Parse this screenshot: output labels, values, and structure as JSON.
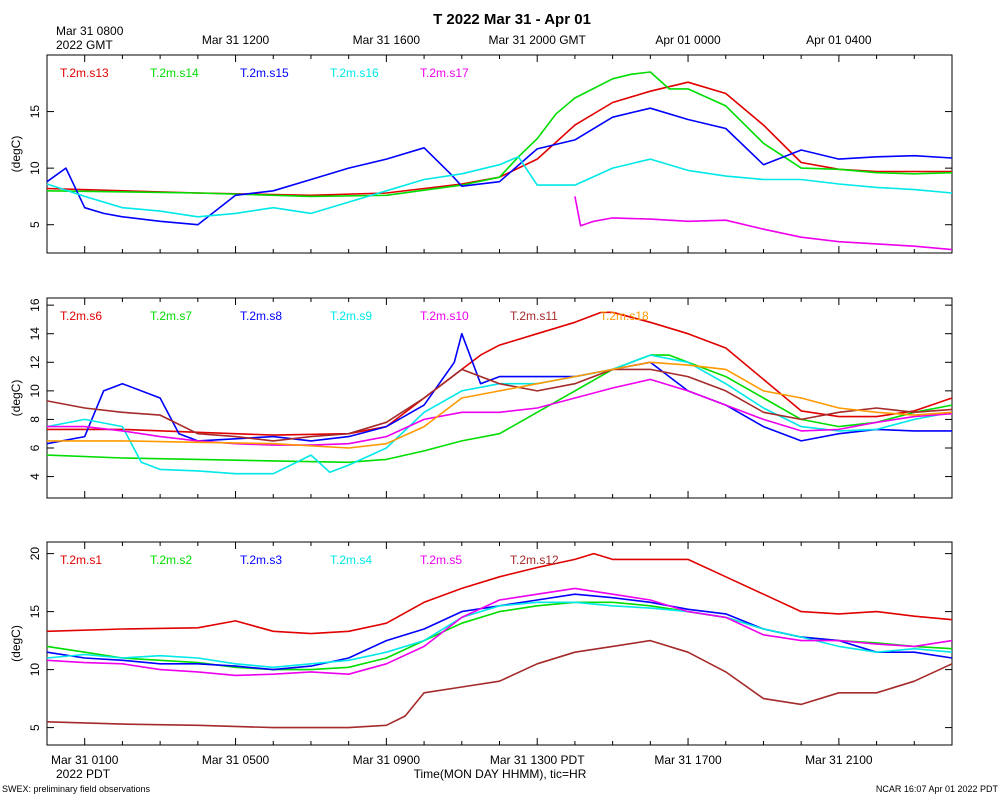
{
  "header": {
    "title": "T 2022 Mar 31 - Apr 01",
    "top_left_line1": "Mar 31 0800",
    "top_left_line2": "2022 GMT",
    "top_ticks": [
      "Mar 31 1200",
      "Mar 31 1600",
      "Mar 31 2000 GMT",
      "Apr 01 0000",
      "Apr 01 0400"
    ]
  },
  "footer": {
    "bottom_ticks": [
      "Mar 31 0100",
      "Mar 31 0500",
      "Mar 31 0900",
      "Mar 31 1300 PDT",
      "Mar 31 1700",
      "Mar 31 2100"
    ],
    "bottom_left_tz": "2022 PDT",
    "xlabel": "Time(MON DAY HHMM), tic=HR",
    "left_note": "SWEX: preliminary field observations",
    "right_note": "NCAR 16:07 Apr 01 2022 PDT"
  },
  "chart_data": [
    {
      "type": "line",
      "title": "T 2022 Mar 31 - Apr 01",
      "xlabel": "Time(MON DAY HHMM), tic=HR",
      "ylabel": "(degC)",
      "x_unit": "hours since Mar 31 0000 PDT",
      "xlim": [
        0.0,
        24.0
      ],
      "ylim": [
        2.5,
        20.0
      ],
      "yticks": [
        5,
        10,
        15
      ],
      "series": [
        {
          "name": "T.2m.s13",
          "color": "#e00000",
          "x": [
            0,
            4,
            7,
            9,
            11,
            12,
            13,
            13.5,
            14,
            15,
            16,
            17,
            18,
            19,
            20,
            21,
            22,
            23,
            24
          ],
          "values": [
            8.2,
            7.8,
            7.6,
            7.8,
            8.6,
            9.2,
            10.8,
            12.3,
            13.8,
            15.8,
            16.8,
            17.6,
            16.6,
            13.8,
            10.5,
            9.9,
            9.7,
            9.7,
            9.7
          ]
        },
        {
          "name": "T.2m.s14",
          "color": "#00dd00",
          "x": [
            0,
            4,
            7,
            9,
            11,
            12,
            12.5,
            13,
            13.5,
            14,
            15,
            15.5,
            16,
            16.5,
            17,
            18,
            19,
            20,
            21,
            22,
            23,
            24
          ],
          "values": [
            8.0,
            7.8,
            7.5,
            7.6,
            8.5,
            9.2,
            11.0,
            12.6,
            14.8,
            16.2,
            17.9,
            18.3,
            18.5,
            17.0,
            17.0,
            15.5,
            12.2,
            10.0,
            9.9,
            9.6,
            9.5,
            9.6
          ]
        },
        {
          "name": "T.2m.s15",
          "color": "#0000ff",
          "x": [
            0,
            0.5,
            1,
            1.5,
            2,
            3,
            4,
            5,
            6,
            7,
            8,
            9,
            10,
            10.7,
            11,
            12,
            13,
            14,
            15,
            16,
            17,
            18,
            19,
            20,
            21,
            22,
            23,
            24
          ],
          "values": [
            8.8,
            10.0,
            6.5,
            6.0,
            5.7,
            5.3,
            5.0,
            7.6,
            8.0,
            9.0,
            10.0,
            10.8,
            11.8,
            9.5,
            8.4,
            8.8,
            11.7,
            12.5,
            14.5,
            15.3,
            14.3,
            13.5,
            10.3,
            11.6,
            10.8,
            11.0,
            11.1,
            10.9
          ]
        },
        {
          "name": "T.2m.s16",
          "color": "#00e8e8",
          "x": [
            0,
            1,
            2,
            3,
            4,
            5,
            6,
            7,
            8,
            9,
            10,
            11,
            12,
            12.5,
            13,
            14,
            15,
            16,
            17,
            18,
            19,
            20,
            21,
            22,
            23,
            24
          ],
          "values": [
            8.6,
            7.5,
            6.5,
            6.2,
            5.7,
            6.0,
            6.5,
            6.0,
            7.0,
            8.0,
            9.0,
            9.5,
            10.3,
            11.0,
            8.5,
            8.5,
            10.0,
            10.8,
            9.8,
            9.3,
            9.0,
            9.0,
            8.6,
            8.3,
            8.1,
            7.8
          ]
        },
        {
          "name": "T.2m.s17",
          "color": "#ee00ee",
          "x": [
            14,
            14.15,
            14.5,
            15,
            16,
            17,
            18,
            19,
            20,
            21,
            22,
            23,
            24
          ],
          "values": [
            7.5,
            4.9,
            5.3,
            5.6,
            5.5,
            5.3,
            5.4,
            4.6,
            3.9,
            3.5,
            3.3,
            3.1,
            2.8
          ]
        }
      ]
    },
    {
      "type": "line",
      "xlabel": "",
      "ylabel": "(degC)",
      "x_unit": "hours since Mar 31 0000 PDT",
      "xlim": [
        0.0,
        24.0
      ],
      "ylim": [
        2.5,
        16.5
      ],
      "yticks": [
        4,
        6,
        8,
        10,
        12,
        14,
        16
      ],
      "series": [
        {
          "name": "T.2m.s6",
          "color": "#e00000",
          "x": [
            0,
            2,
            4,
            6,
            8,
            9,
            10,
            11,
            11.5,
            12,
            13,
            14,
            14.7,
            15,
            16,
            17,
            18,
            19,
            20,
            21,
            22,
            23,
            24
          ],
          "values": [
            7.3,
            7.3,
            7.1,
            6.9,
            7.0,
            7.5,
            9.5,
            11.5,
            12.5,
            13.2,
            14.0,
            14.8,
            15.5,
            15.5,
            14.8,
            14.0,
            13.0,
            10.8,
            8.6,
            8.2,
            8.2,
            8.6,
            9.5
          ]
        },
        {
          "name": "T.2m.s7",
          "color": "#00dd00",
          "x": [
            0,
            2,
            4,
            6,
            8,
            9,
            10,
            11,
            12,
            13,
            14,
            15,
            16,
            16.5,
            17,
            18,
            19,
            20,
            21,
            22,
            23,
            24
          ],
          "values": [
            5.5,
            5.3,
            5.2,
            5.1,
            5.0,
            5.2,
            5.8,
            6.5,
            7.0,
            8.5,
            10.0,
            11.5,
            12.5,
            12.5,
            12.0,
            11.0,
            9.5,
            8.0,
            7.5,
            7.8,
            8.5,
            9.0
          ]
        },
        {
          "name": "T.2m.s8",
          "color": "#0000ff",
          "x": [
            0,
            1,
            1.5,
            2,
            3,
            3.5,
            4,
            6,
            7,
            8,
            9,
            10,
            10.8,
            11,
            11.5,
            12,
            13,
            14,
            15,
            16,
            17,
            18,
            19,
            20,
            21,
            22,
            23,
            24
          ],
          "values": [
            6.3,
            6.8,
            10.0,
            10.5,
            9.5,
            7.0,
            6.5,
            6.8,
            6.5,
            6.8,
            7.5,
            9.0,
            12.0,
            14.0,
            10.5,
            11.0,
            11.0,
            11.0,
            11.5,
            12.0,
            10.0,
            9.0,
            7.5,
            6.5,
            7.0,
            7.3,
            7.2,
            7.2
          ]
        },
        {
          "name": "T.2m.s9",
          "color": "#00e8e8",
          "x": [
            0,
            1,
            2,
            2.5,
            3,
            4,
            5,
            6,
            7,
            7.5,
            8,
            9,
            10,
            11,
            12,
            13,
            14,
            15,
            16,
            17,
            18,
            19,
            20,
            21,
            22,
            23,
            24
          ],
          "values": [
            7.5,
            8.0,
            7.5,
            5.0,
            4.5,
            4.4,
            4.2,
            4.2,
            5.5,
            4.3,
            4.8,
            6.0,
            8.5,
            10.0,
            10.5,
            10.5,
            11.0,
            11.5,
            12.5,
            12.0,
            10.5,
            8.8,
            7.5,
            7.2,
            7.3,
            8.0,
            8.5
          ]
        },
        {
          "name": "T.2m.s10",
          "color": "#ee00ee",
          "x": [
            0,
            1,
            2,
            3,
            4,
            5,
            6,
            7,
            8,
            9,
            10,
            11,
            12,
            13,
            14,
            15,
            16,
            17,
            18,
            19,
            20,
            21,
            22,
            23,
            24
          ],
          "values": [
            7.5,
            7.5,
            7.2,
            6.8,
            6.5,
            6.3,
            6.2,
            6.2,
            6.3,
            6.8,
            8.0,
            8.5,
            8.5,
            8.8,
            9.5,
            10.2,
            10.8,
            10.0,
            9.0,
            8.0,
            7.2,
            7.3,
            7.8,
            8.2,
            8.4
          ]
        },
        {
          "name": "T.2m.s11",
          "color": "#a52a2a",
          "x": [
            0,
            1,
            2,
            3,
            4,
            5,
            6,
            7,
            8,
            9,
            10,
            11,
            12,
            13,
            14,
            15,
            16,
            17,
            18,
            19,
            20,
            21,
            22,
            23,
            24
          ],
          "values": [
            9.3,
            8.8,
            8.5,
            8.3,
            7.0,
            6.8,
            6.5,
            6.8,
            7.0,
            7.8,
            9.5,
            11.5,
            10.5,
            10.0,
            10.5,
            11.5,
            11.5,
            11.0,
            10.0,
            8.5,
            8.0,
            8.5,
            8.8,
            8.5,
            8.7
          ]
        },
        {
          "name": "T.2m.s18",
          "color": "#ff9900",
          "x": [
            0,
            2,
            4,
            6,
            8,
            9,
            10,
            11,
            12,
            13,
            14,
            15,
            16,
            17,
            18,
            19,
            20,
            21,
            22,
            23,
            24
          ],
          "values": [
            6.5,
            6.5,
            6.4,
            6.3,
            6.0,
            6.3,
            7.5,
            9.5,
            10.0,
            10.5,
            11.0,
            11.5,
            12.0,
            11.8,
            11.5,
            10.0,
            9.5,
            8.8,
            8.5,
            8.3,
            8.5
          ]
        }
      ]
    },
    {
      "type": "line",
      "xlabel": "Time(MON DAY HHMM), tic=HR",
      "ylabel": "(degC)",
      "x_unit": "hours since Mar 31 0000 PDT",
      "xlim": [
        0.0,
        24.0
      ],
      "ylim": [
        3.5,
        21.0
      ],
      "yticks": [
        5,
        10,
        15,
        20
      ],
      "series": [
        {
          "name": "T.2m.s1",
          "color": "#e00000",
          "x": [
            0,
            2,
            4,
            5,
            6,
            7,
            8,
            9,
            10,
            11,
            12,
            13,
            14,
            14.5,
            15,
            16,
            17,
            18,
            19,
            20,
            21,
            22,
            23,
            24
          ],
          "values": [
            13.3,
            13.5,
            13.6,
            14.2,
            13.3,
            13.1,
            13.3,
            14.0,
            15.8,
            17.0,
            18.0,
            18.8,
            19.5,
            20.0,
            19.5,
            19.5,
            19.5,
            18.0,
            16.5,
            15.0,
            14.8,
            15.0,
            14.6,
            14.3
          ]
        },
        {
          "name": "T.2m.s2",
          "color": "#00dd00",
          "x": [
            0,
            1,
            2,
            3,
            4,
            5,
            6,
            7,
            8,
            9,
            10,
            11,
            12,
            13,
            14,
            15,
            16,
            17,
            18,
            19,
            20,
            21,
            22,
            23,
            24
          ],
          "values": [
            12.0,
            11.5,
            11.0,
            10.8,
            10.6,
            10.2,
            10.0,
            10.0,
            10.2,
            11.0,
            12.5,
            14.0,
            15.0,
            15.5,
            15.8,
            15.8,
            15.5,
            15.0,
            14.5,
            13.5,
            12.8,
            12.5,
            12.3,
            12.0,
            11.8
          ]
        },
        {
          "name": "T.2m.s3",
          "color": "#0000ff",
          "x": [
            0,
            1,
            2,
            3,
            4,
            5,
            6,
            7,
            8,
            9,
            10,
            11,
            12,
            13,
            14,
            15,
            16,
            17,
            18,
            19,
            20,
            21,
            22,
            23,
            24
          ],
          "values": [
            11.5,
            11.0,
            10.8,
            10.5,
            10.5,
            10.3,
            10.0,
            10.3,
            11.0,
            12.5,
            13.5,
            15.0,
            15.5,
            16.0,
            16.5,
            16.2,
            15.8,
            15.2,
            14.8,
            13.5,
            12.8,
            12.5,
            11.5,
            11.5,
            11.0
          ]
        },
        {
          "name": "T.2m.s4",
          "color": "#00e8e8",
          "x": [
            0,
            1,
            2,
            3,
            4,
            5,
            6,
            7,
            8,
            9,
            10,
            11,
            12,
            13,
            14,
            15,
            16,
            17,
            18,
            19,
            20,
            21,
            22,
            23,
            24
          ],
          "values": [
            11.0,
            11.3,
            11.0,
            11.2,
            11.0,
            10.5,
            10.2,
            10.5,
            10.8,
            11.5,
            12.5,
            14.5,
            15.5,
            15.8,
            15.8,
            15.5,
            15.3,
            15.0,
            14.5,
            13.5,
            12.8,
            12.0,
            11.5,
            11.8,
            11.5
          ]
        },
        {
          "name": "T.2m.s5",
          "color": "#ee00ee",
          "x": [
            0,
            1,
            2,
            3,
            4,
            5,
            6,
            7,
            8,
            9,
            10,
            11,
            12,
            13,
            14,
            15,
            16,
            17,
            18,
            19,
            20,
            21,
            22,
            23,
            24
          ],
          "values": [
            10.8,
            10.6,
            10.5,
            10.0,
            9.8,
            9.5,
            9.6,
            9.8,
            9.6,
            10.5,
            12.0,
            14.5,
            16.0,
            16.5,
            17.0,
            16.5,
            16.0,
            15.0,
            14.5,
            13.0,
            12.5,
            12.5,
            12.2,
            12.0,
            12.5
          ]
        },
        {
          "name": "T.2m.s12",
          "color": "#a52a2a",
          "x": [
            0,
            2,
            4,
            6,
            8,
            9,
            9.5,
            10,
            11,
            12,
            13,
            14,
            15,
            16,
            17,
            18,
            19,
            20,
            21,
            22,
            23,
            24
          ],
          "values": [
            5.5,
            5.3,
            5.2,
            5.0,
            5.0,
            5.2,
            6.0,
            8.0,
            8.5,
            9.0,
            10.5,
            11.5,
            12.0,
            12.5,
            11.5,
            9.8,
            7.5,
            7.0,
            8.0,
            8.0,
            9.0,
            10.5
          ]
        }
      ]
    }
  ]
}
